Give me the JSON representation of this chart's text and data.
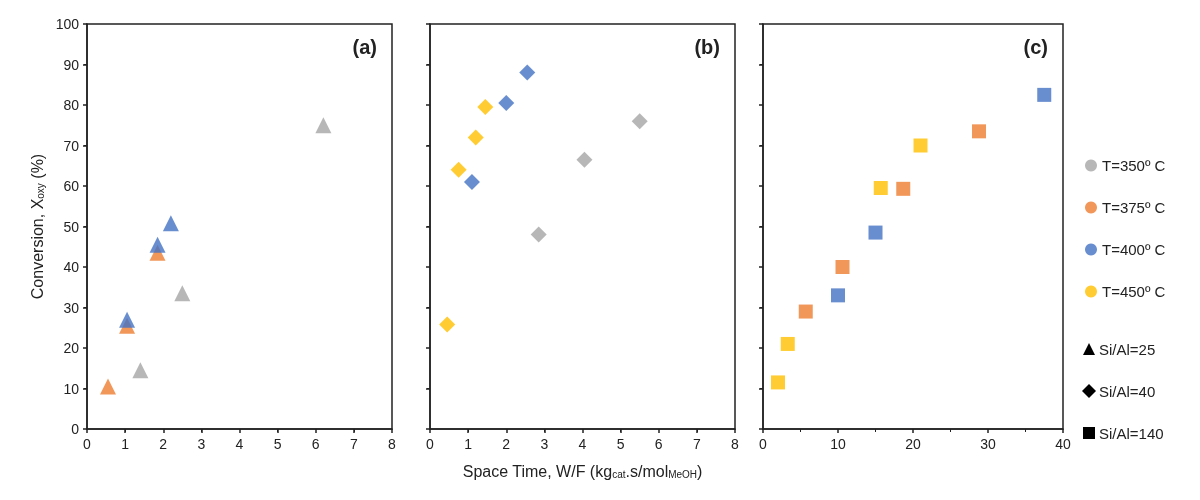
{
  "chart_data": [
    {
      "type": "scatter",
      "title": "(a)",
      "ylabel": "Conversion, X$_{oxy}$ (%)",
      "marker": "triangle",
      "legend": "right",
      "annotations": [
        "Si/Al=25"
      ],
      "xlim": [
        0,
        8
      ],
      "xticks": [
        0,
        1,
        2,
        3,
        4,
        5,
        6,
        7,
        8
      ],
      "ylim": [
        0,
        100
      ],
      "yticks": [
        0,
        10,
        20,
        30,
        40,
        50,
        60,
        70,
        80,
        90,
        100
      ],
      "grid": false,
      "series": [
        {
          "name": "T=350º C",
          "color": "#a5a5a5",
          "x": [
            1.4,
            2.5,
            6.2
          ],
          "values": [
            14.5,
            33.5,
            75
          ]
        },
        {
          "name": "T=375º C",
          "color": "#ed7d31",
          "x": [
            0.55,
            1.05,
            1.85
          ],
          "values": [
            10.5,
            25.5,
            43.5
          ]
        },
        {
          "name": "T=400º C",
          "color": "#4472c4",
          "x": [
            1.05,
            1.85,
            2.2
          ],
          "values": [
            27,
            45.5,
            50.8
          ]
        }
      ]
    },
    {
      "type": "scatter",
      "title": "(b)",
      "xlabel": "Space Time, W/F (kg$_{cat}$.s/mol$_{MeOH}$)",
      "marker": "diamond",
      "legend": "right",
      "tick_labels": "x",
      "annotations": [
        "Si/Al=40"
      ],
      "xlim": [
        0,
        8
      ],
      "xticks": [
        0,
        1,
        2,
        3,
        4,
        5,
        6,
        7,
        8
      ],
      "ylim": [
        0,
        100
      ],
      "yticks": [
        0,
        10,
        20,
        30,
        40,
        50,
        60,
        70,
        80,
        90,
        100
      ],
      "grid": false,
      "series": [
        {
          "name": "T=350º C",
          "color": "#a5a5a5",
          "x": [
            2.85,
            4.05,
            5.5
          ],
          "values": [
            48,
            66.5,
            76
          ]
        },
        {
          "name": "T=400º C",
          "color": "#4472c4",
          "x": [
            1.1,
            2.0,
            2.55
          ],
          "values": [
            61,
            80.5,
            88
          ]
        },
        {
          "name": "T=450º C",
          "color": "#ffc000",
          "x": [
            0.45,
            0.75,
            1.2,
            1.45
          ],
          "values": [
            25.8,
            64,
            72,
            79.5
          ]
        }
      ]
    },
    {
      "type": "scatter",
      "title": "(c)",
      "marker": "square",
      "legend": "right",
      "tick_labels": "x",
      "annotations": [
        "Si/Al=140"
      ],
      "xlim": [
        0,
        40
      ],
      "xticks": [
        0,
        10,
        20,
        30,
        40
      ],
      "ylim": [
        0,
        100
      ],
      "yticks": [
        0,
        10,
        20,
        30,
        40,
        50,
        60,
        70,
        80,
        90,
        100
      ],
      "grid": false,
      "series": [
        {
          "name": "T=375º C",
          "color": "#ed7d31",
          "x": [
            5.7,
            10.6,
            18.7,
            28.8
          ],
          "values": [
            29,
            40,
            59.3,
            73.5
          ]
        },
        {
          "name": "T=400º C",
          "color": "#4472c4",
          "x": [
            10,
            15,
            37.5
          ],
          "values": [
            33,
            48.5,
            82.5
          ]
        },
        {
          "name": "T=450º C",
          "color": "#ffc000",
          "x": [
            2,
            3.3,
            15.7,
            21
          ],
          "values": [
            11.5,
            21,
            59.5,
            70
          ]
        }
      ]
    }
  ]
}
